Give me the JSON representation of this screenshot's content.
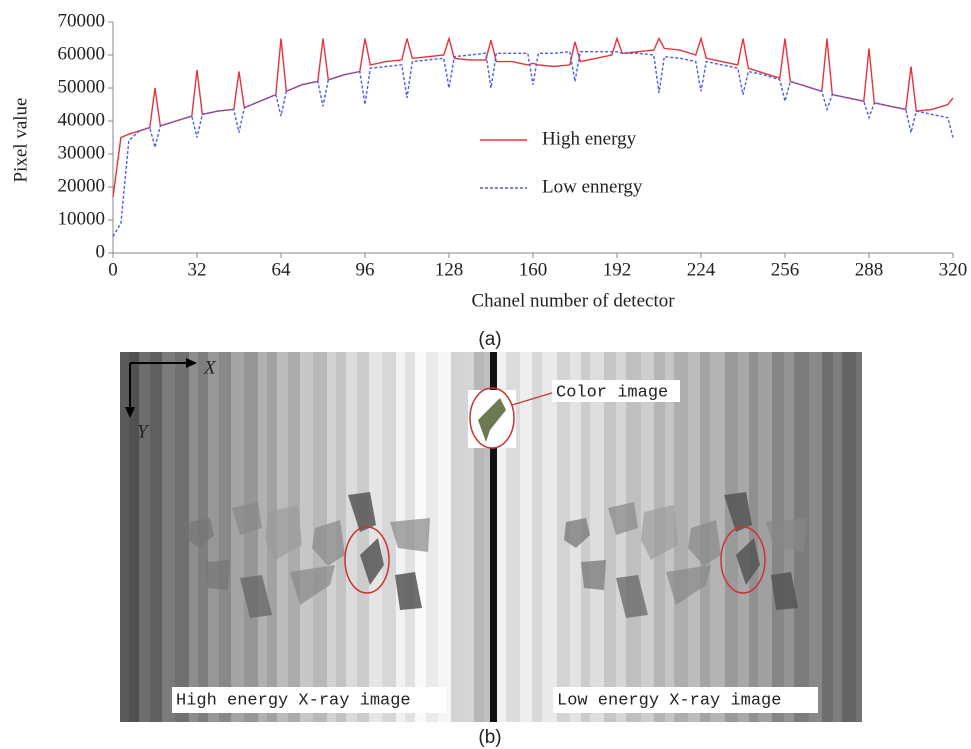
{
  "chart_data": {
    "type": "line",
    "x_label": "Chanel number of detector",
    "y_label": "Pixel value",
    "panel_label": "(a)",
    "xlim": [
      0,
      320
    ],
    "xticks": [
      0,
      32,
      64,
      96,
      128,
      160,
      192,
      224,
      256,
      288,
      320
    ],
    "ylim": [
      0,
      70000
    ],
    "yticks": [
      0,
      10000,
      20000,
      30000,
      40000,
      50000,
      60000,
      70000
    ],
    "x": [
      0,
      3,
      6,
      10,
      14,
      16,
      18,
      24,
      30,
      32,
      34,
      40,
      46,
      48,
      50,
      56,
      62,
      64,
      66,
      72,
      78,
      80,
      82,
      88,
      94,
      96,
      98,
      104,
      110,
      112,
      114,
      120,
      126,
      128,
      130,
      136,
      142,
      144,
      146,
      152,
      158,
      160,
      162,
      168,
      174,
      176,
      178,
      184,
      190,
      192,
      194,
      200,
      206,
      208,
      210,
      216,
      222,
      224,
      226,
      232,
      238,
      240,
      242,
      248,
      254,
      256,
      258,
      264,
      270,
      272,
      274,
      280,
      286,
      288,
      290,
      296,
      302,
      304,
      306,
      312,
      318,
      320
    ],
    "series": [
      {
        "name": "High energy",
        "color": "#e8323c",
        "dash": false,
        "values": [
          17000,
          35000,
          36000,
          37000,
          38000,
          50000,
          38500,
          40000,
          41500,
          55500,
          42000,
          43000,
          43500,
          55000,
          44000,
          46000,
          48000,
          65000,
          49000,
          51000,
          52000,
          65000,
          52500,
          54000,
          55000,
          65000,
          57000,
          58000,
          58500,
          65000,
          59000,
          59500,
          60000,
          65000,
          59000,
          58500,
          58500,
          64500,
          58000,
          58000,
          57000,
          57500,
          57000,
          56500,
          57000,
          64000,
          58000,
          59000,
          60000,
          65000,
          60500,
          61000,
          61500,
          65000,
          62000,
          61500,
          60000,
          65000,
          59000,
          58000,
          57000,
          65000,
          56000,
          54500,
          53000,
          65000,
          52000,
          50500,
          49000,
          65000,
          48000,
          47000,
          46000,
          62000,
          45500,
          44500,
          43500,
          56500,
          43000,
          43500,
          45000,
          47000
        ]
      },
      {
        "name": "Low ennergy",
        "color": "#4a5ee8",
        "dash": true,
        "values": [
          5000,
          9000,
          34000,
          37000,
          38000,
          32000,
          38500,
          40000,
          41500,
          35000,
          42000,
          43000,
          43500,
          36500,
          44000,
          46000,
          48000,
          41500,
          49000,
          51000,
          52000,
          44500,
          52500,
          54000,
          55000,
          45000,
          56000,
          56500,
          57000,
          47000,
          58000,
          58500,
          59000,
          50000,
          59500,
          60000,
          60500,
          50000,
          60500,
          60500,
          60500,
          51000,
          60500,
          60500,
          61000,
          52000,
          61000,
          61000,
          61000,
          61000,
          60500,
          60500,
          60000,
          48500,
          59500,
          59000,
          58000,
          49000,
          58000,
          57000,
          56000,
          48000,
          55000,
          54000,
          52500,
          46000,
          52000,
          50500,
          49000,
          43500,
          48000,
          47000,
          46000,
          41000,
          45500,
          44500,
          43500,
          36500,
          43000,
          42000,
          41000,
          35000
        ]
      }
    ]
  },
  "figure_b": {
    "axis_x": "X",
    "axis_y": "Y",
    "callout": "Color image",
    "left_caption": "High energy X-ray image",
    "right_caption": "Low energy X-ray image",
    "panel_label": "(b)"
  }
}
